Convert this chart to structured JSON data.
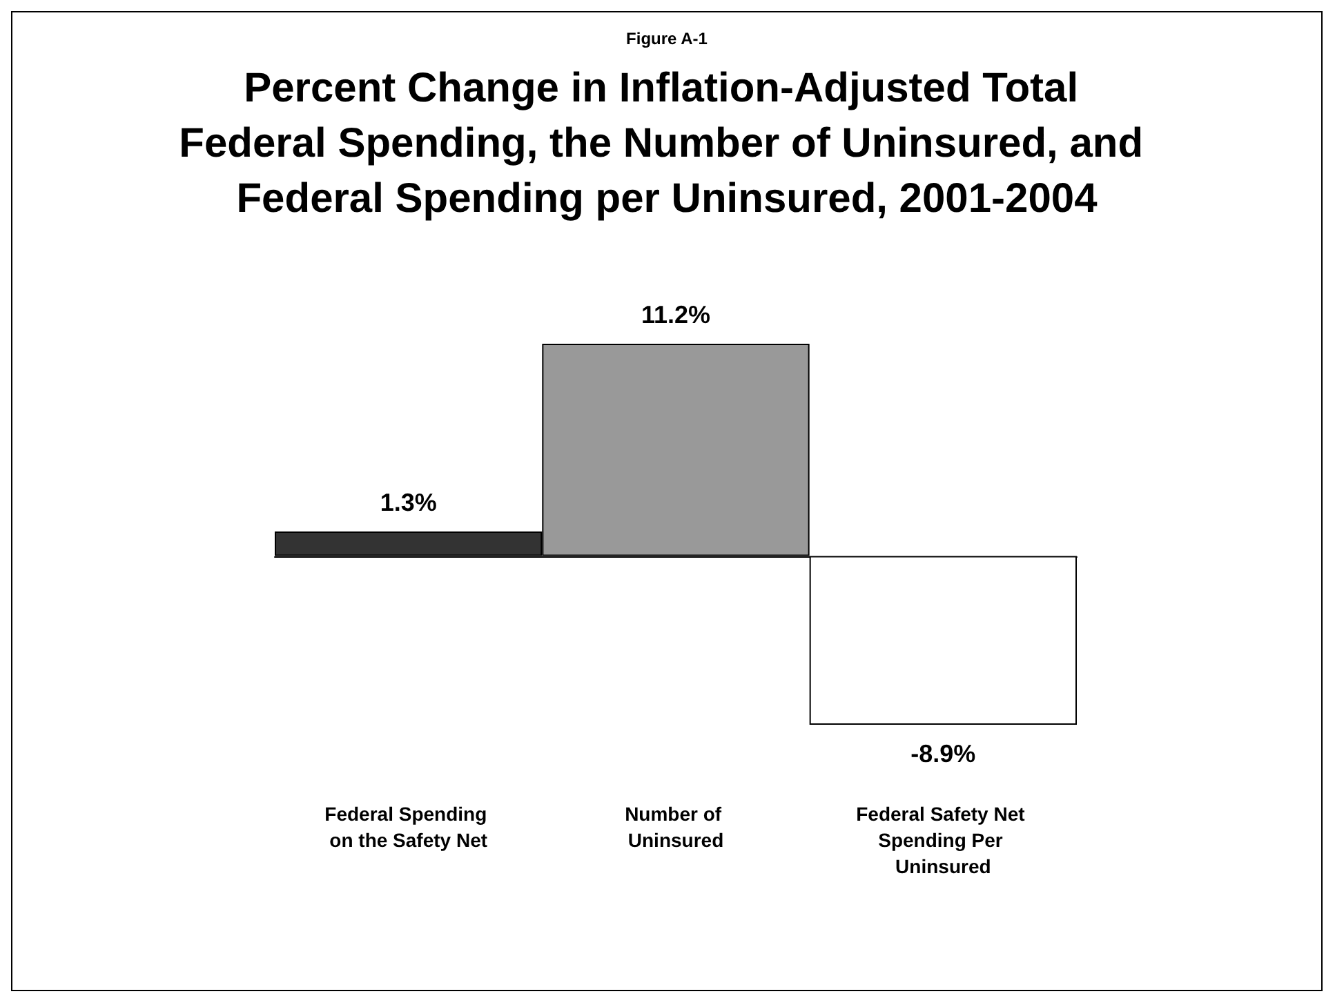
{
  "chart_data": {
    "type": "bar",
    "subtitle": "Figure A-1",
    "title": "Percent Change in Inflation-Adjusted Total Federal Spending, the Number of Uninsured, and Federal Spending per Uninsured, 2001-2004",
    "categories": [
      "Federal Spending on the Safety Net",
      "Number of Uninsured",
      "Federal Safety Net Spending Per Uninsured"
    ],
    "values": [
      1.3,
      11.2,
      -8.9
    ],
    "colors": [
      "#333333",
      "#999999",
      "#ffffff"
    ],
    "value_labels": [
      "1.3%",
      "11.2%",
      "-8.9%"
    ]
  }
}
